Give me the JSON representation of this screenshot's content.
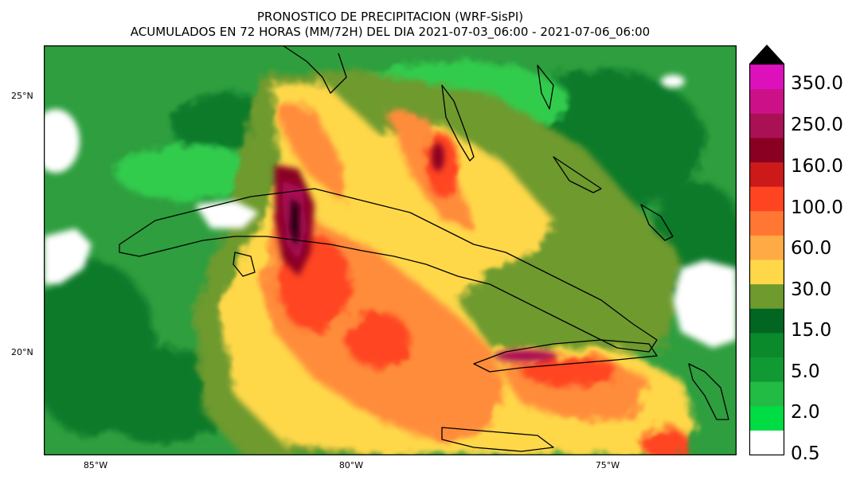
{
  "title": {
    "line1": "PRONOSTICO DE PRECIPITACION (WRF-SisPI)",
    "line2": "ACUMULADOS EN 72 HORAS (MM/72H) DEL DIA 2021-07-03_06:00 - 2021-07-06_06:00"
  },
  "axes": {
    "lat_labels": [
      "25°N",
      "20°N"
    ],
    "lon_labels": [
      "85°W",
      "80°W",
      "75°W"
    ]
  },
  "colorbar": {
    "tick_labels": [
      "350.0",
      "250.0",
      "160.0",
      "100.0",
      "60.0",
      "30.0",
      "15.0",
      "5.0",
      "2.0",
      "0.5"
    ],
    "colors": [
      "#ffffff",
      "#00dd44",
      "#22bb44",
      "#119933",
      "#0a8a2a",
      "#006622",
      "#6e9a2e",
      "#ffd84a",
      "#ffaa44",
      "#ff7733",
      "#ff4422",
      "#cc1a1a",
      "#8a0022",
      "#aa1155",
      "#cc1188",
      "#dd11bb",
      "#000000"
    ]
  },
  "map_colors": {
    "background": "#2e9e3e",
    "land_outline": "#000000"
  }
}
